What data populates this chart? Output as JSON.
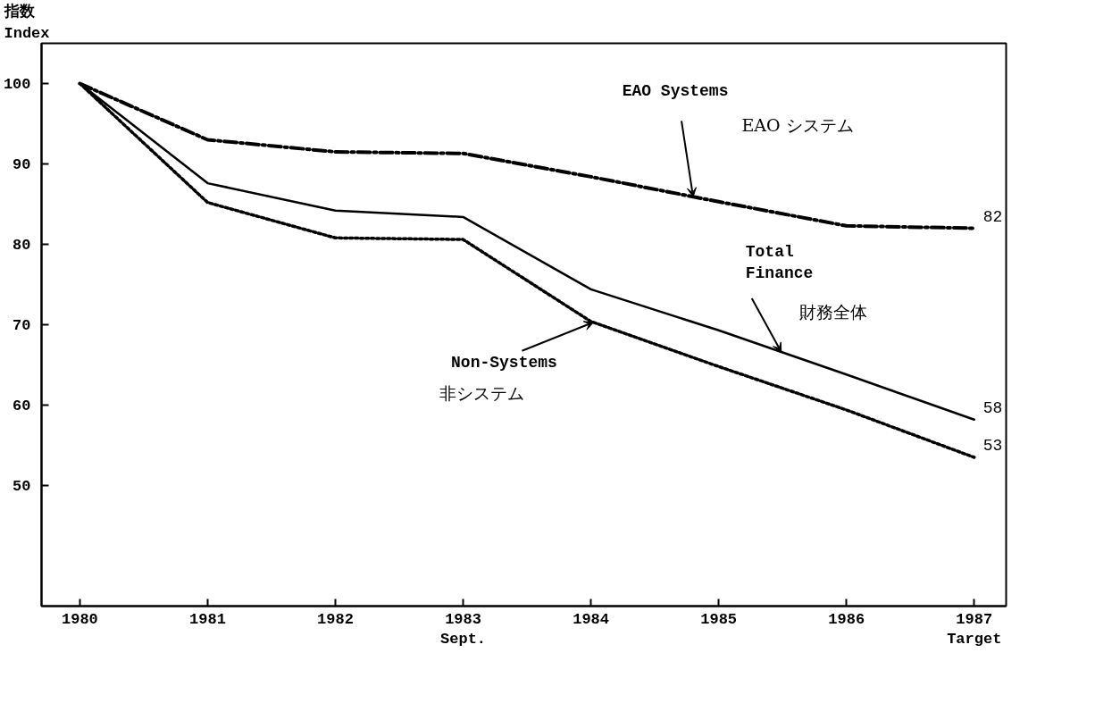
{
  "chart_data": {
    "type": "line",
    "ylabel": "指数\nIndex",
    "x": [
      1980,
      1981,
      1982,
      1983,
      1984,
      1985,
      1986,
      1987
    ],
    "xlim": [
      1979.7,
      1987.25
    ],
    "xticks": [
      1980,
      1981,
      1982,
      {
        "value": 1983,
        "label": "1983\nSept."
      },
      1984,
      1985,
      1986,
      {
        "value": 1987,
        "label": "1987\nTarget"
      }
    ],
    "ylim": [
      35,
      105
    ],
    "yticks": [
      50,
      60,
      70,
      80,
      90,
      100
    ],
    "grid": false,
    "marker": "none",
    "series": [
      {
        "color": "#000000",
        "line_style": "dashed",
        "values": [
          100,
          93,
          91.5,
          91.3,
          88.4,
          85.3,
          82.3,
          82
        ],
        "value_labels": [
          null,
          null,
          null,
          null,
          null,
          null,
          null,
          "82"
        ]
      },
      {
        "color": "#000000",
        "line_style": "solid",
        "values": [
          100,
          87.6,
          84.2,
          83.4,
          74.4,
          69.3,
          63.8,
          58.2
        ],
        "value_labels": [
          null,
          null,
          null,
          null,
          null,
          null,
          null,
          "58"
        ]
      },
      {
        "color": "#000000",
        "line_style": "dotted",
        "values": [
          100,
          85.2,
          80.8,
          80.6,
          70.4,
          64.8,
          59.4,
          53.5
        ],
        "value_labels": [
          null,
          null,
          null,
          null,
          null,
          null,
          null,
          "53"
        ]
      }
    ],
    "annotations": [
      {
        "text": "EAO Systems",
        "x": 1984.8,
        "y": 85.9
      },
      "EAO システム",
      {
        "text": "Total Finance",
        "x": 1985.49,
        "y": 66.6
      },
      "財務全体",
      {
        "text": "Non-Systems",
        "x": 1984.02,
        "y": 70.3
      },
      "非システム"
    ]
  }
}
